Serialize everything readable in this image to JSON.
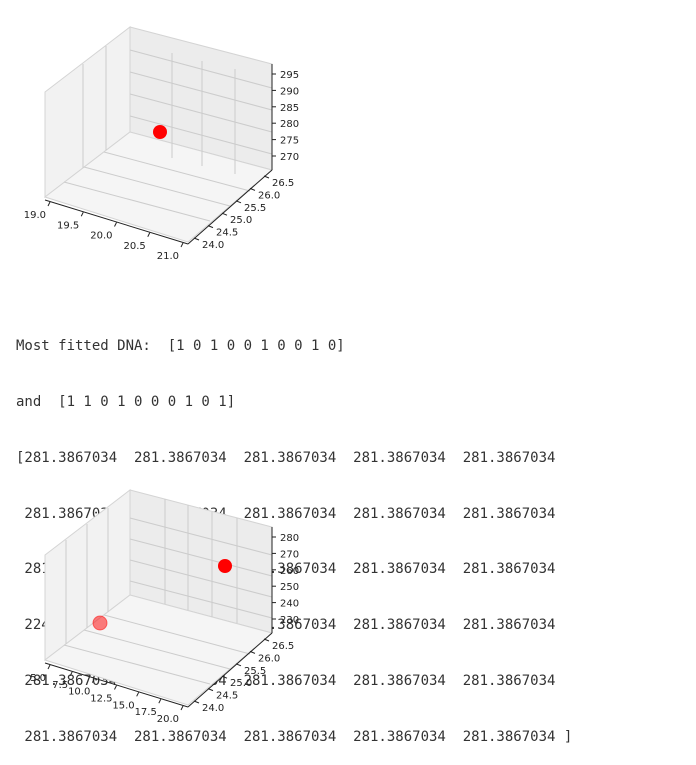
{
  "plot1": {
    "x_ticks": [
      "19.0",
      "19.5",
      "20.0",
      "20.5",
      "21.0"
    ],
    "y_ticks": [
      "24.0",
      "24.5",
      "25.0",
      "25.5",
      "26.0",
      "26.5"
    ],
    "z_ticks": [
      "270",
      "275",
      "280",
      "285",
      "290",
      "295"
    ],
    "point_color": "#ff0000",
    "points": [
      {
        "alpha": 1.0
      }
    ]
  },
  "output": {
    "line1": "Most fitted DNA:  [1 0 1 0 0 1 0 0 1 0]",
    "line2": "and  [1 1 0 1 0 0 0 1 0 1]",
    "rows": [
      "[281.3867034  281.3867034  281.3867034  281.3867034  281.3867034",
      " 281.3867034  281.3867034  281.3867034  281.3867034  281.3867034",
      " 281.3867034  281.3867034  281.3867034  281.3867034  281.3867034",
      " 224.96797062 281.3867034  281.3867034  281.3867034  281.3867034",
      " 281.3867034  281.3867034  281.3867034  281.3867034  281.3867034",
      " 281.3867034  281.3867034  281.3867034  281.3867034  281.3867034 ]"
    ]
  },
  "plot2": {
    "x_ticks": [
      "5.0",
      "7.5",
      "10.0",
      "12.5",
      "15.0",
      "17.5",
      "20.0"
    ],
    "y_ticks": [
      "24.0",
      "24.5",
      "25.0",
      "25.5",
      "26.0",
      "26.5"
    ],
    "z_ticks": [
      "230",
      "240",
      "250",
      "260",
      "270",
      "280"
    ],
    "point_color": "#ff0000",
    "points": [
      {
        "alpha": 1.0
      },
      {
        "alpha": 0.5
      }
    ]
  }
}
